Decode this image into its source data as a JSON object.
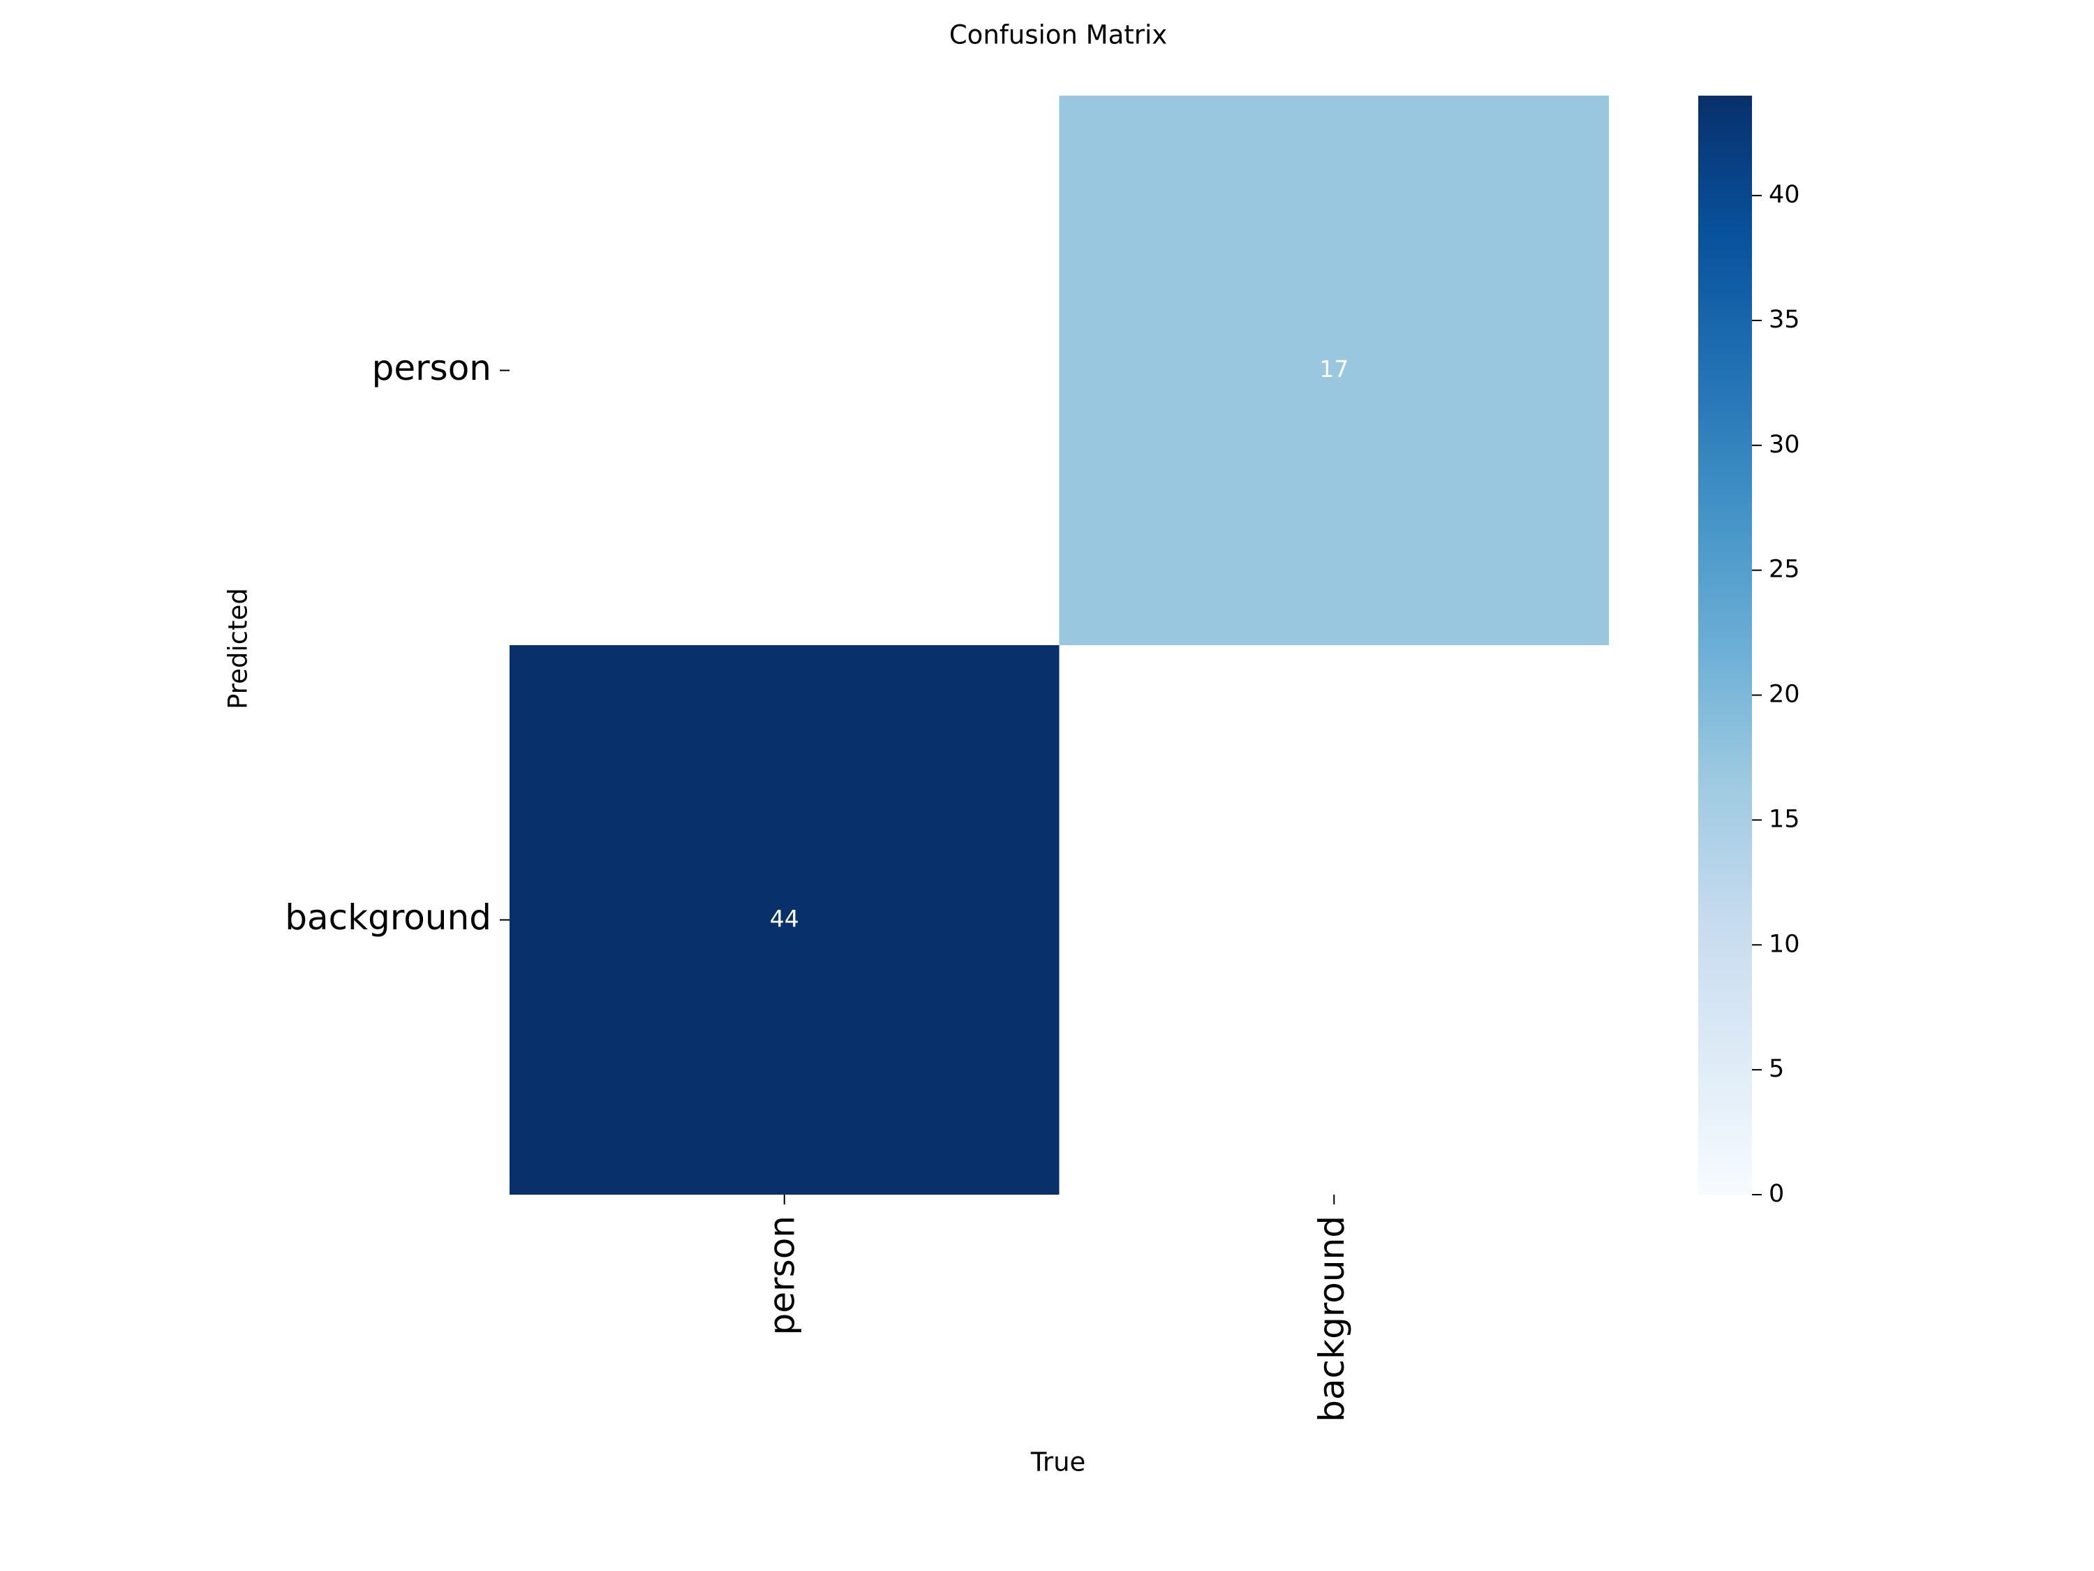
{
  "chart_data": {
    "type": "heatmap",
    "title": "Confusion Matrix",
    "x_label": "True",
    "y_label": "Predicted",
    "x_categories": [
      "person",
      "background"
    ],
    "y_categories": [
      "person",
      "background"
    ],
    "values": [
      [
        null,
        17
      ],
      [
        44,
        null
      ]
    ],
    "colormap": "Blues",
    "zlim": [
      0,
      44
    ],
    "zticks": [
      0,
      5,
      10,
      15,
      20,
      25,
      30,
      35,
      40
    ]
  }
}
